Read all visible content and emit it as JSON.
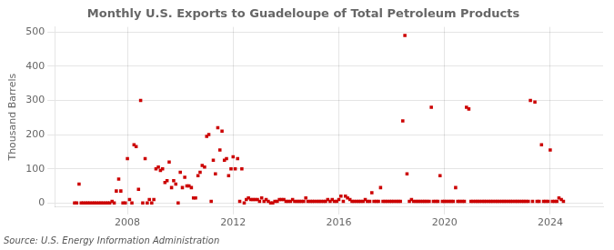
{
  "chart_data": {
    "type": "scatter",
    "title": "Monthly U.S. Exports to Guadeloupe of Total Petroleum Products",
    "y_label": "Thousand Barrels",
    "annotations": [
      "Source: U.S. Energy Information Administration"
    ],
    "color": "#cc0000",
    "marker": "square",
    "grid": true,
    "xlim": [
      2005.25,
      2026.0
    ],
    "ylim": [
      -12,
      515
    ],
    "xticks": [
      2008,
      2012,
      2016,
      2020,
      2024
    ],
    "yticks": [
      0,
      100,
      200,
      300,
      400,
      500
    ],
    "x": [
      2006.0,
      2006.08,
      2006.17,
      2006.25,
      2006.33,
      2006.42,
      2006.5,
      2006.58,
      2006.67,
      2006.75,
      2006.83,
      2006.92,
      2007.0,
      2007.08,
      2007.17,
      2007.25,
      2007.33,
      2007.42,
      2007.5,
      2007.58,
      2007.67,
      2007.75,
      2007.83,
      2007.92,
      2008.0,
      2008.08,
      2008.17,
      2008.25,
      2008.33,
      2008.42,
      2008.5,
      2008.58,
      2008.67,
      2008.75,
      2008.83,
      2008.92,
      2009.0,
      2009.08,
      2009.17,
      2009.25,
      2009.33,
      2009.42,
      2009.5,
      2009.58,
      2009.67,
      2009.75,
      2009.83,
      2009.92,
      2010.0,
      2010.08,
      2010.17,
      2010.25,
      2010.33,
      2010.42,
      2010.5,
      2010.58,
      2010.67,
      2010.75,
      2010.83,
      2010.92,
      2011.0,
      2011.08,
      2011.17,
      2011.25,
      2011.33,
      2011.42,
      2011.5,
      2011.58,
      2011.67,
      2011.75,
      2011.83,
      2011.92,
      2012.0,
      2012.08,
      2012.17,
      2012.25,
      2012.33,
      2012.42,
      2012.5,
      2012.58,
      2012.67,
      2012.75,
      2012.83,
      2012.92,
      2013.0,
      2013.08,
      2013.17,
      2013.25,
      2013.33,
      2013.42,
      2013.5,
      2013.58,
      2013.67,
      2013.75,
      2013.83,
      2013.92,
      2014.0,
      2014.08,
      2014.17,
      2014.25,
      2014.33,
      2014.42,
      2014.5,
      2014.58,
      2014.67,
      2014.75,
      2014.83,
      2014.92,
      2015.0,
      2015.08,
      2015.17,
      2015.25,
      2015.33,
      2015.42,
      2015.5,
      2015.58,
      2015.67,
      2015.75,
      2015.83,
      2015.92,
      2016.0,
      2016.08,
      2016.17,
      2016.25,
      2016.33,
      2016.42,
      2016.5,
      2016.58,
      2016.67,
      2016.75,
      2016.83,
      2016.92,
      2017.0,
      2017.08,
      2017.17,
      2017.25,
      2017.33,
      2017.42,
      2017.5,
      2017.58,
      2017.67,
      2017.75,
      2017.83,
      2017.92,
      2018.0,
      2018.08,
      2018.17,
      2018.25,
      2018.33,
      2018.42,
      2018.5,
      2018.58,
      2018.67,
      2018.75,
      2018.83,
      2018.92,
      2019.0,
      2019.08,
      2019.17,
      2019.25,
      2019.33,
      2019.42,
      2019.5,
      2019.58,
      2019.67,
      2019.75,
      2019.83,
      2019.92,
      2020.0,
      2020.08,
      2020.17,
      2020.25,
      2020.33,
      2020.42,
      2020.5,
      2020.58,
      2020.67,
      2020.75,
      2020.83,
      2020.92,
      2021.0,
      2021.08,
      2021.17,
      2021.25,
      2021.33,
      2021.42,
      2021.5,
      2021.58,
      2021.67,
      2021.75,
      2021.83,
      2021.92,
      2022.0,
      2022.08,
      2022.17,
      2022.25,
      2022.33,
      2022.42,
      2022.5,
      2022.58,
      2022.67,
      2022.75,
      2022.83,
      2022.92,
      2023.0,
      2023.08,
      2023.17,
      2023.25,
      2023.33,
      2023.42,
      2023.5,
      2023.58,
      2023.67,
      2023.75,
      2023.83,
      2023.92,
      2024.0,
      2024.08,
      2024.17,
      2024.25,
      2024.33,
      2024.42,
      2024.5
    ],
    "values": [
      0,
      0,
      55,
      0,
      0,
      0,
      0,
      0,
      0,
      0,
      0,
      0,
      0,
      0,
      0,
      0,
      0,
      5,
      0,
      35,
      70,
      35,
      0,
      0,
      130,
      10,
      0,
      170,
      165,
      40,
      300,
      0,
      130,
      0,
      10,
      0,
      10,
      100,
      105,
      95,
      100,
      60,
      65,
      120,
      45,
      65,
      55,
      0,
      90,
      45,
      75,
      50,
      50,
      45,
      15,
      15,
      80,
      90,
      110,
      105,
      195,
      200,
      5,
      125,
      85,
      220,
      155,
      210,
      125,
      130,
      80,
      100,
      135,
      100,
      130,
      5,
      100,
      0,
      10,
      15,
      10,
      10,
      10,
      10,
      5,
      15,
      5,
      10,
      5,
      0,
      0,
      5,
      5,
      10,
      10,
      10,
      5,
      5,
      5,
      10,
      5,
      5,
      5,
      5,
      5,
      15,
      5,
      5,
      5,
      5,
      5,
      5,
      5,
      5,
      5,
      10,
      5,
      10,
      5,
      5,
      10,
      20,
      5,
      20,
      15,
      10,
      5,
      5,
      5,
      5,
      5,
      5,
      10,
      5,
      5,
      30,
      5,
      5,
      5,
      45,
      5,
      5,
      5,
      5,
      5,
      5,
      5,
      5,
      5,
      240,
      490,
      85,
      5,
      10,
      5,
      5,
      5,
      5,
      5,
      5,
      5,
      5,
      280,
      5,
      5,
      5,
      80,
      5,
      5,
      5,
      5,
      5,
      5,
      45,
      5,
      5,
      5,
      5,
      280,
      275,
      5,
      5,
      5,
      5,
      5,
      5,
      5,
      5,
      5,
      5,
      5,
      5,
      5,
      5,
      5,
      5,
      5,
      5,
      5,
      5,
      5,
      5,
      5,
      5,
      5,
      5,
      5,
      300,
      5,
      295,
      5,
      5,
      170,
      5,
      5,
      5,
      155,
      5,
      5,
      5,
      15,
      10,
      5
    ]
  }
}
